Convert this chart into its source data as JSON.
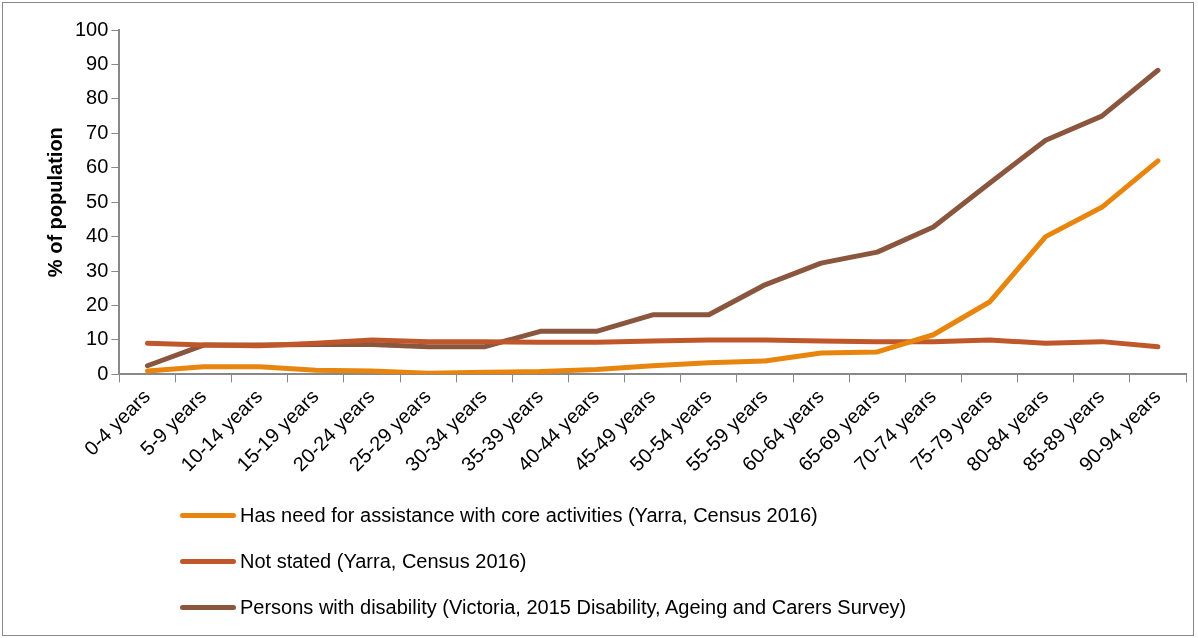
{
  "chart_data": {
    "type": "line",
    "ylabel": "% of population",
    "categories": [
      "0-4 years",
      "5-9 years",
      "10-14 years",
      "15-19 years",
      "20-24 years",
      "25-29 years",
      "30-34 years",
      "35-39 years",
      "40-44 years",
      "45-49 years",
      "50-54 years",
      "55-59 years",
      "60-64 years",
      "65-69 years",
      "70-74 years",
      "75-79 years",
      "80-84 years",
      "85-89 years",
      "90-94 years"
    ],
    "series": [
      {
        "name": "Has need for assistance with core activities (Yarra, Census 2016)",
        "color": "#e8850f",
        "values": [
          1,
          2.2,
          2.2,
          1.2,
          1,
          0.3,
          0.6,
          0.8,
          1.4,
          2.5,
          3.4,
          3.9,
          6.2,
          6.5,
          11.5,
          21,
          40,
          48.5,
          62
        ]
      },
      {
        "name": "Not stated (Yarra, Census 2016)",
        "color": "#c0572b",
        "values": [
          9,
          8.5,
          8.3,
          9,
          10,
          9.5,
          9.5,
          9.3,
          9.3,
          9.7,
          10,
          10,
          9.7,
          9.5,
          9.5,
          10,
          9,
          9.5,
          8
        ]
      },
      {
        "name": "Persons with disability (Victoria, 2015 Disability, Ageing and Carers Survey)",
        "color": "#8b563e",
        "values": [
          2.5,
          8.5,
          8.5,
          8.7,
          8.7,
          8,
          8,
          12.5,
          12.5,
          17.3,
          17.3,
          26,
          32.3,
          35.5,
          42.8,
          55.5,
          68,
          75,
          88.3
        ]
      }
    ],
    "ylim": [
      0,
      100
    ],
    "yticks": [
      0,
      10,
      20,
      30,
      40,
      50,
      60,
      70,
      80,
      90,
      100
    ],
    "grid": false,
    "legend": "bottom",
    "marker": "none",
    "line_style": "solid"
  }
}
